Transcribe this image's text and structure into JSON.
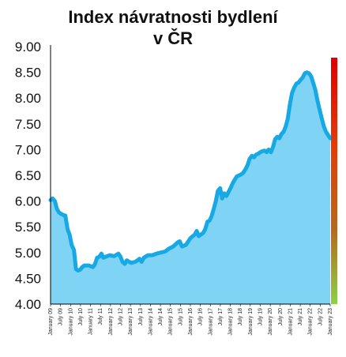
{
  "title_line1": "Index návratnosti bydlení",
  "title_line2": "v ČR",
  "colors": {
    "fill": "#7fd3f5",
    "line": "#17a9e3",
    "axis": "#000000",
    "gauge_top": "#e00000",
    "gauge_bottom": "#8bd14a"
  },
  "chart_data": {
    "type": "area",
    "title": "Index návratnosti bydlení v ČR",
    "xlabel": "",
    "ylabel": "",
    "ylim": [
      4.0,
      9.0
    ],
    "grid": false,
    "y_ticks": [
      "4.00",
      "4.50",
      "5.00",
      "5.50",
      "6.00",
      "6.50",
      "7.00",
      "7.50",
      "8.00",
      "8.50",
      "9.00"
    ],
    "x_ticks": [
      "January 09",
      "July 09",
      "January 10",
      "July 10",
      "January 11",
      "July 11",
      "January 12",
      "July 12",
      "January 13",
      "July 13",
      "January 14",
      "July 14",
      "January 15",
      "July 15",
      "January 16",
      "July 16",
      "January 17",
      "July 17",
      "January 18",
      "July 18",
      "January 19",
      "July 19",
      "January 20",
      "July 20",
      "January 21",
      "July 21",
      "January 22",
      "July 22",
      "January 23"
    ],
    "series": [
      {
        "points": [
          [
            2009.0,
            6.02
          ],
          [
            2009.08,
            6.05
          ],
          [
            2009.17,
            6.0
          ],
          [
            2009.25,
            5.85
          ],
          [
            2009.33,
            5.78
          ],
          [
            2009.42,
            5.75
          ],
          [
            2009.5,
            5.73
          ],
          [
            2009.58,
            5.72
          ],
          [
            2009.67,
            5.45
          ],
          [
            2009.75,
            5.35
          ],
          [
            2009.83,
            5.15
          ],
          [
            2009.92,
            5.05
          ],
          [
            2010.0,
            4.68
          ],
          [
            2010.08,
            4.65
          ],
          [
            2010.17,
            4.67
          ],
          [
            2010.25,
            4.72
          ],
          [
            2010.33,
            4.75
          ],
          [
            2010.5,
            4.75
          ],
          [
            2010.67,
            4.72
          ],
          [
            2010.75,
            4.78
          ],
          [
            2010.83,
            4.9
          ],
          [
            2010.92,
            4.92
          ],
          [
            2011.0,
            4.98
          ],
          [
            2011.08,
            4.9
          ],
          [
            2011.17,
            4.92
          ],
          [
            2011.33,
            4.95
          ],
          [
            2011.5,
            4.93
          ],
          [
            2011.67,
            4.98
          ],
          [
            2011.75,
            4.92
          ],
          [
            2011.83,
            4.82
          ],
          [
            2011.92,
            4.78
          ],
          [
            2012.0,
            4.85
          ],
          [
            2012.17,
            4.8
          ],
          [
            2012.33,
            4.82
          ],
          [
            2012.42,
            4.85
          ],
          [
            2012.5,
            4.88
          ],
          [
            2012.58,
            4.82
          ],
          [
            2012.67,
            4.9
          ],
          [
            2012.83,
            4.95
          ],
          [
            2013.0,
            4.95
          ],
          [
            2013.17,
            4.98
          ],
          [
            2013.33,
            5.0
          ],
          [
            2013.5,
            5.02
          ],
          [
            2013.67,
            5.08
          ],
          [
            2013.83,
            5.12
          ],
          [
            2014.0,
            5.2
          ],
          [
            2014.08,
            5.22
          ],
          [
            2014.17,
            5.12
          ],
          [
            2014.33,
            5.15
          ],
          [
            2014.5,
            5.28
          ],
          [
            2014.67,
            5.35
          ],
          [
            2014.75,
            5.42
          ],
          [
            2014.83,
            5.32
          ],
          [
            2015.0,
            5.38
          ],
          [
            2015.08,
            5.45
          ],
          [
            2015.17,
            5.6
          ],
          [
            2015.25,
            5.62
          ],
          [
            2015.33,
            5.7
          ],
          [
            2015.42,
            5.85
          ],
          [
            2015.5,
            6.0
          ],
          [
            2015.58,
            6.2
          ],
          [
            2015.67,
            6.25
          ],
          [
            2015.75,
            6.05
          ],
          [
            2015.83,
            6.15
          ],
          [
            2015.92,
            6.1
          ],
          [
            2016.0,
            6.18
          ],
          [
            2016.08,
            6.25
          ],
          [
            2016.17,
            6.35
          ],
          [
            2016.25,
            6.42
          ],
          [
            2016.33,
            6.48
          ],
          [
            2016.42,
            6.5
          ],
          [
            2016.5,
            6.52
          ],
          [
            2016.58,
            6.55
          ],
          [
            2016.67,
            6.62
          ],
          [
            2016.75,
            6.7
          ],
          [
            2016.83,
            6.82
          ],
          [
            2016.92,
            6.88
          ],
          [
            2017.0,
            6.85
          ],
          [
            2017.08,
            6.9
          ],
          [
            2017.17,
            6.92
          ],
          [
            2017.25,
            6.95
          ],
          [
            2017.33,
            6.97
          ],
          [
            2017.42,
            6.98
          ],
          [
            2017.5,
            6.95
          ],
          [
            2017.58,
            7.0
          ],
          [
            2017.67,
            6.95
          ],
          [
            2017.75,
            7.05
          ],
          [
            2017.83,
            7.2
          ],
          [
            2017.92,
            7.25
          ],
          [
            2018.0,
            7.22
          ],
          [
            2018.08,
            7.3
          ],
          [
            2018.17,
            7.35
          ],
          [
            2018.25,
            7.45
          ],
          [
            2018.33,
            7.6
          ],
          [
            2018.42,
            7.9
          ],
          [
            2018.5,
            8.1
          ],
          [
            2018.58,
            8.2
          ],
          [
            2018.67,
            8.28
          ],
          [
            2018.75,
            8.3
          ],
          [
            2018.83,
            8.35
          ],
          [
            2018.92,
            8.4
          ],
          [
            2019.0,
            8.48
          ],
          [
            2019.08,
            8.5
          ],
          [
            2019.17,
            8.48
          ],
          [
            2019.25,
            8.42
          ],
          [
            2019.33,
            8.3
          ],
          [
            2019.42,
            8.15
          ],
          [
            2019.5,
            7.95
          ],
          [
            2019.58,
            7.78
          ],
          [
            2019.67,
            7.6
          ],
          [
            2019.75,
            7.45
          ],
          [
            2019.83,
            7.35
          ],
          [
            2019.92,
            7.28
          ],
          [
            2020.0,
            7.22
          ]
        ]
      }
    ]
  }
}
